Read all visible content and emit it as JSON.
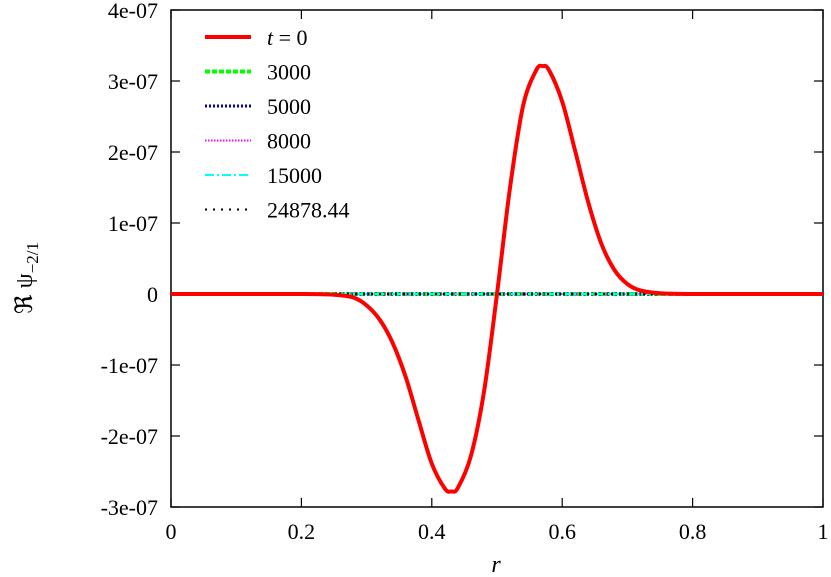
{
  "chart_data": {
    "type": "line",
    "xlabel": "r",
    "ylabel": "ℜ ψ−2/1",
    "ylabel_main": "ℜ ψ",
    "ylabel_sub": "−2/1",
    "xlim": [
      0,
      1
    ],
    "ylim": [
      -3e-07,
      4e-07
    ],
    "x_ticks": [
      0,
      0.2,
      0.4,
      0.6,
      0.8,
      1
    ],
    "x_tick_labels": [
      "0",
      "0.2",
      "0.4",
      "0.6",
      "0.8",
      "1"
    ],
    "y_ticks": [
      -3e-07,
      -2e-07,
      -1e-07,
      0,
      1e-07,
      2e-07,
      3e-07,
      4e-07
    ],
    "y_tick_labels": [
      "-3e-07",
      "-2e-07",
      "-1e-07",
      "0",
      "1e-07",
      "2e-07",
      "3e-07",
      "4e-07"
    ],
    "grid": false,
    "legend_position": "top-left",
    "series": [
      {
        "name": "t = 0",
        "name_italic": "t",
        "name_rest": " = 0",
        "color": "#ff0000",
        "dash": "solid",
        "width": 4,
        "x": [
          0,
          0.1,
          0.2,
          0.25,
          0.28,
          0.3,
          0.32,
          0.34,
          0.36,
          0.38,
          0.4,
          0.42,
          0.43,
          0.44,
          0.46,
          0.48,
          0.5,
          0.52,
          0.54,
          0.56,
          0.57,
          0.58,
          0.6,
          0.62,
          0.64,
          0.66,
          0.68,
          0.7,
          0.72,
          0.75,
          0.8,
          0.9,
          1
        ],
        "y": [
          0,
          0,
          0,
          -1e-09,
          -5e-09,
          -1.6e-08,
          -3.6e-08,
          -6.9e-08,
          -1.17e-07,
          -1.79e-07,
          -2.39e-07,
          -2.74e-07,
          -2.78e-07,
          -2.73e-07,
          -2.28e-07,
          -1.38e-07,
          0,
          1.5e-07,
          2.65e-07,
          3.15e-07,
          3.21e-07,
          3.15e-07,
          2.71e-07,
          2.01e-07,
          1.29e-07,
          7.1e-08,
          3.4e-08,
          1.4e-08,
          5e-09,
          1e-09,
          0,
          0,
          0
        ]
      },
      {
        "name": "3000",
        "color": "#00ff00",
        "dash": "dashed",
        "width": 4,
        "x": [
          0,
          1
        ],
        "y": [
          0,
          0
        ]
      },
      {
        "name": "5000",
        "color": "#0000aa",
        "dash": "dotted",
        "width": 3,
        "x": [
          0,
          1
        ],
        "y": [
          0,
          0
        ]
      },
      {
        "name": "8000",
        "color": "#ff00ff",
        "dash": "dotted-fine",
        "width": 2,
        "x": [
          0,
          1
        ],
        "y": [
          0,
          0
        ]
      },
      {
        "name": "15000",
        "color": "#00ffff",
        "dash": "dash-dot",
        "width": 2,
        "x": [
          0,
          1
        ],
        "y": [
          0,
          0
        ]
      },
      {
        "name": "24878.44",
        "color": "#000000",
        "dash": "sparse-dot",
        "width": 2,
        "x": [
          0,
          1
        ],
        "y": [
          0,
          0
        ]
      }
    ]
  }
}
